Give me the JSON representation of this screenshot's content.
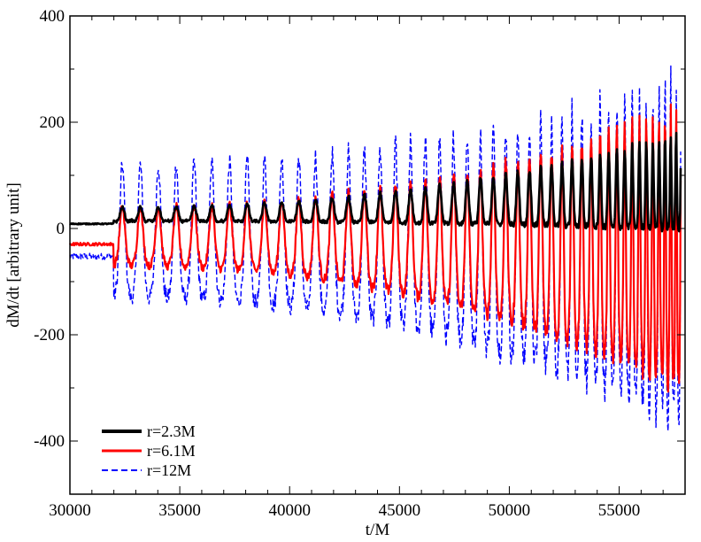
{
  "chart_data": {
    "type": "line",
    "title": "",
    "xlabel": "t/M",
    "ylabel": "dM/dt [arbitrary unit]",
    "xlim": [
      30000,
      58000
    ],
    "ylim": [
      -500,
      400
    ],
    "xticks": [
      30000,
      35000,
      40000,
      45000,
      50000,
      55000
    ],
    "xtick_labels": [
      "30000",
      "35000",
      "40000",
      "45000",
      "50000",
      "55000"
    ],
    "yticks": [
      -400,
      -200,
      0,
      200,
      400
    ],
    "ytick_labels": [
      "-400",
      "-200",
      "0",
      "200",
      "400"
    ],
    "grid": false,
    "legend_position": "bottom-left",
    "series": [
      {
        "name": "r=12M",
        "color": "#0000ff",
        "style": "dashed",
        "t_start": 30000,
        "t_end": 57800,
        "osc_start": 32000,
        "period_early": 820,
        "period_late": 230,
        "peak_early": 120,
        "peak_late": 280,
        "trough_early": -130,
        "trough_late": -360,
        "noise": 30
      },
      {
        "name": "r=6.1M",
        "color": "#ff0000",
        "style": "solid",
        "t_start": 30000,
        "t_end": 57800,
        "osc_start": 32000,
        "period_early": 820,
        "period_late": 230,
        "peak_early": 40,
        "peak_late": 230,
        "trough_early": -70,
        "trough_late": -300,
        "noise": 14
      },
      {
        "name": "r=2.3M",
        "color": "#000000",
        "style": "solid",
        "t_start": 30000,
        "t_end": 57800,
        "osc_start": 32000,
        "period_early": 820,
        "period_late": 230,
        "peak_early": 40,
        "peak_late": 180,
        "trough_early": 15,
        "trough_late": 0,
        "noise": 5
      }
    ],
    "legend": [
      {
        "label": "r=2.3M",
        "color": "#000000",
        "style": "solid",
        "width": 4
      },
      {
        "label": "r=6.1M",
        "color": "#ff0000",
        "style": "solid",
        "width": 3
      },
      {
        "label": "r=12M",
        "color": "#0000ff",
        "style": "dashed",
        "width": 2
      }
    ]
  }
}
